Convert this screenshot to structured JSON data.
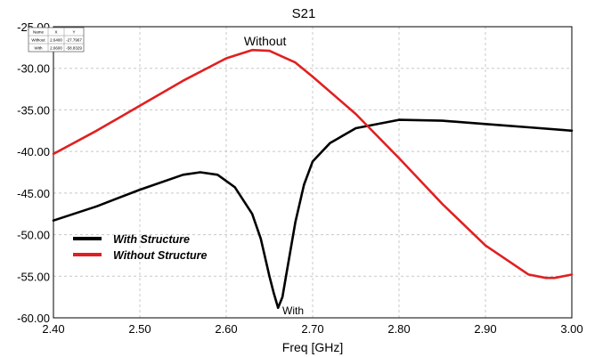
{
  "chart_data": {
    "type": "line",
    "title": "S21",
    "xlabel": "Freq [GHz]",
    "ylabel": "",
    "xlim": [
      2.4,
      3.0
    ],
    "ylim": [
      -60,
      -25
    ],
    "grid": true,
    "legend_position": "bottom-left",
    "xticks": [
      "2.40",
      "2.50",
      "2.60",
      "2.70",
      "2.80",
      "2.90",
      "3.00"
    ],
    "yticks": [
      "-25.00",
      "-30.00",
      "-35.00",
      "-40.00",
      "-45.00",
      "-50.00",
      "-55.00",
      "-60.00"
    ],
    "series": [
      {
        "name": "With Structure",
        "color": "#000000",
        "points": [
          [
            2.4,
            -48.3
          ],
          [
            2.45,
            -46.6
          ],
          [
            2.5,
            -44.6
          ],
          [
            2.55,
            -42.8
          ],
          [
            2.57,
            -42.5
          ],
          [
            2.59,
            -42.8
          ],
          [
            2.61,
            -44.3
          ],
          [
            2.63,
            -47.5
          ],
          [
            2.64,
            -50.5
          ],
          [
            2.65,
            -55.0
          ],
          [
            2.655,
            -57.0
          ],
          [
            2.66,
            -58.8
          ],
          [
            2.665,
            -57.5
          ],
          [
            2.67,
            -54.5
          ],
          [
            2.68,
            -48.5
          ],
          [
            2.69,
            -44.0
          ],
          [
            2.7,
            -41.2
          ],
          [
            2.72,
            -39.0
          ],
          [
            2.75,
            -37.2
          ],
          [
            2.8,
            -36.2
          ],
          [
            2.85,
            -36.3
          ],
          [
            2.9,
            -36.7
          ],
          [
            2.95,
            -37.1
          ],
          [
            3.0,
            -37.5
          ]
        ]
      },
      {
        "name": "Without Structure",
        "color": "#e02020",
        "points": [
          [
            2.4,
            -40.3
          ],
          [
            2.45,
            -37.5
          ],
          [
            2.5,
            -34.5
          ],
          [
            2.55,
            -31.5
          ],
          [
            2.6,
            -28.8
          ],
          [
            2.63,
            -27.8
          ],
          [
            2.65,
            -27.9
          ],
          [
            2.68,
            -29.3
          ],
          [
            2.7,
            -31.0
          ],
          [
            2.75,
            -35.5
          ],
          [
            2.8,
            -40.8
          ],
          [
            2.85,
            -46.3
          ],
          [
            2.9,
            -51.3
          ],
          [
            2.95,
            -54.8
          ],
          [
            2.97,
            -55.2
          ],
          [
            2.98,
            -55.2
          ],
          [
            3.0,
            -54.8
          ]
        ]
      }
    ],
    "annotations": [
      {
        "text": "Without",
        "x": 2.645,
        "y": -27.8
      },
      {
        "text": "With",
        "x": 2.665,
        "y": -58.8
      }
    ],
    "marker_table": {
      "headers": [
        "Name",
        "X",
        "Y"
      ],
      "rows": [
        [
          "Without",
          "2.6400",
          "-27.7967"
        ],
        [
          "With",
          "2.6600",
          "-58.8329"
        ]
      ]
    }
  }
}
